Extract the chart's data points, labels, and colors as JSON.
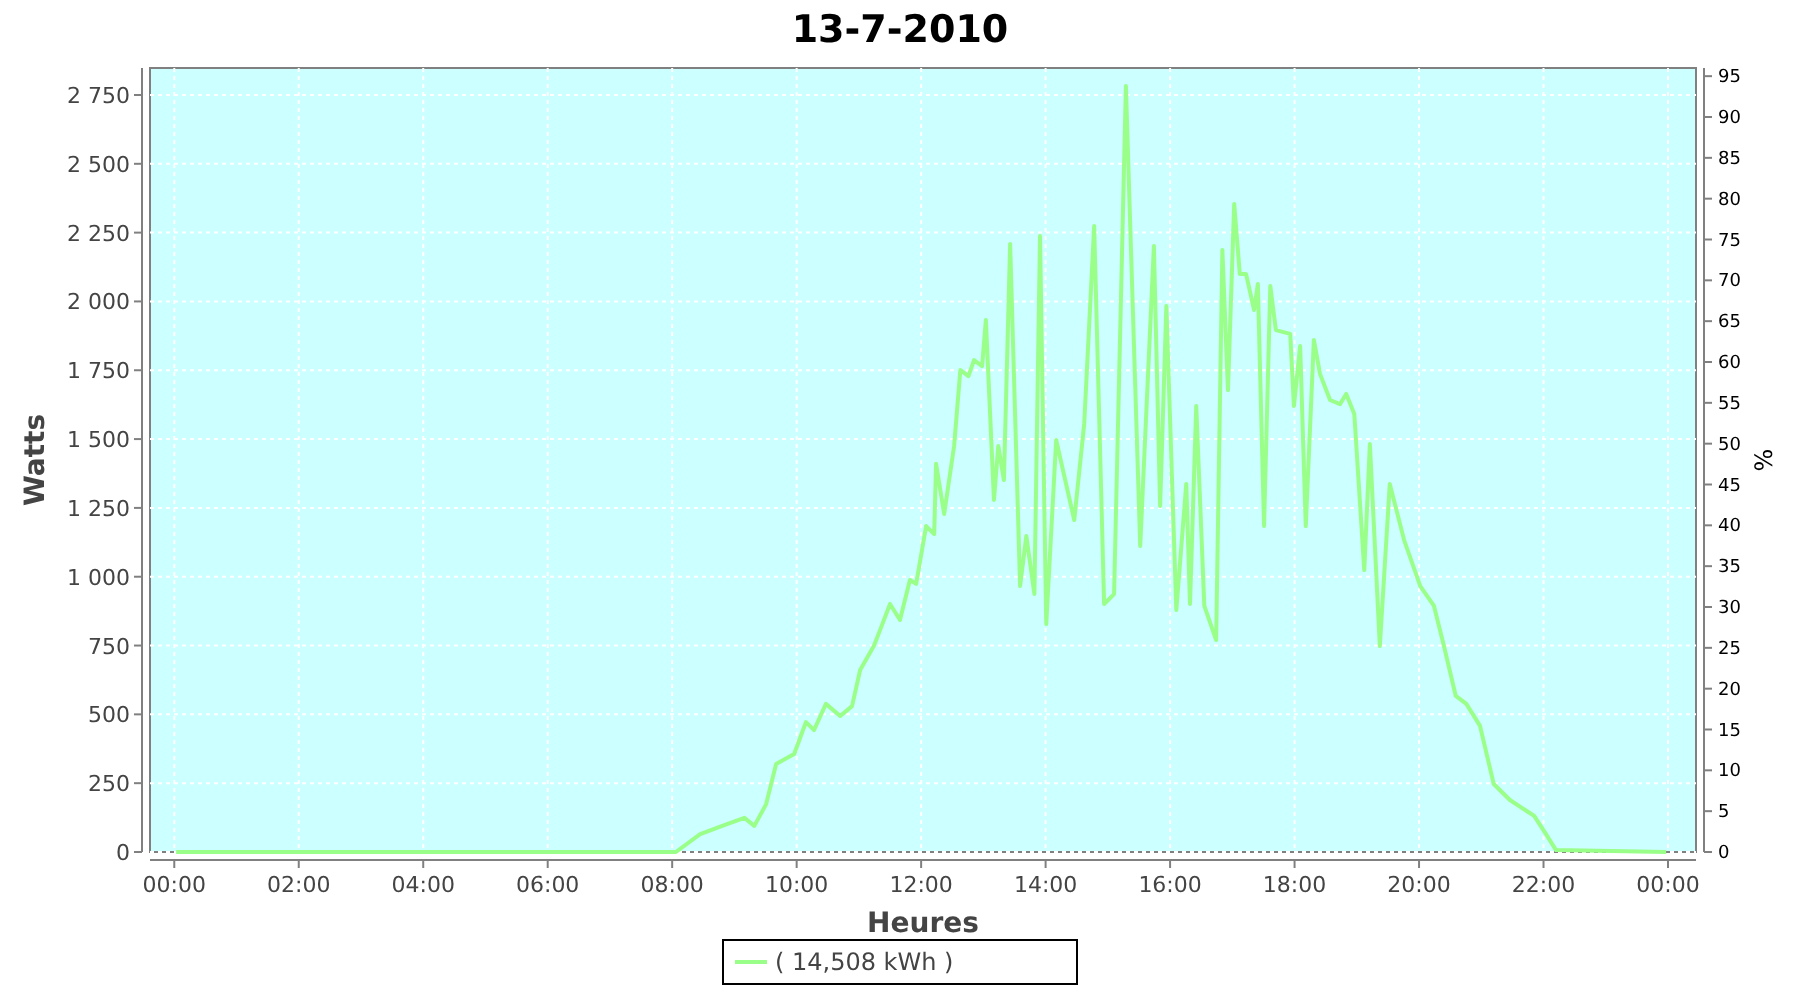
{
  "chart_data": {
    "type": "line",
    "title": "13-7-2010",
    "xlabel": "Heures",
    "ylabel": "Watts",
    "y2label": "%",
    "x": [
      0.03,
      8.06,
      8.45,
      8.87,
      9.16,
      9.32,
      9.51,
      9.67,
      9.96,
      10.15,
      10.28,
      10.47,
      10.7,
      10.89,
      11.02,
      11.24,
      11.34,
      11.5,
      11.66,
      11.82,
      11.92,
      12.08,
      12.21,
      12.24,
      12.37,
      12.53,
      12.63,
      12.76,
      12.85,
      12.98,
      13.04,
      13.17,
      13.24,
      13.33,
      13.43,
      13.59,
      13.69,
      13.82,
      13.91,
      14.01,
      14.17,
      14.3,
      14.46,
      14.62,
      14.78,
      14.94,
      15.1,
      15.29,
      15.52,
      15.74,
      15.84,
      15.94,
      16.1,
      16.26,
      16.32,
      16.42,
      16.55,
      16.74,
      16.84,
      16.93,
      17.03,
      17.12,
      17.22,
      17.35,
      17.41,
      17.51,
      17.61,
      17.7,
      17.93,
      17.99,
      18.09,
      18.18,
      18.31,
      18.41,
      18.57,
      18.73,
      18.83,
      18.96,
      19.12,
      19.21,
      19.37,
      19.53,
      19.76,
      20.02,
      20.24,
      20.4,
      20.59,
      20.76,
      20.98,
      21.2,
      21.46,
      21.85,
      22.04,
      22.2,
      23.97
    ],
    "series": [
      {
        "name": "( 14,508 kWh )",
        "color": "#99ff88",
        "values": [
          0,
          0,
          65,
          100,
          124,
          95,
          174,
          320,
          356,
          472,
          443,
          538,
          494,
          530,
          661,
          748,
          806,
          901,
          843,
          988,
          974,
          1184,
          1155,
          1410,
          1228,
          1475,
          1751,
          1729,
          1787,
          1765,
          1933,
          1279,
          1475,
          1351,
          2209,
          966,
          1148,
          937,
          2238,
          828,
          1497,
          1366,
          1206,
          1555,
          2274,
          901,
          937,
          2783,
          1112,
          2201,
          1257,
          1983,
          879,
          1337,
          901,
          1620,
          894,
          770,
          2187,
          1678,
          2354,
          2100,
          2100,
          1969,
          2063,
          1184,
          2056,
          1896,
          1882,
          1620,
          1838,
          1184,
          1860,
          1736,
          1642,
          1627,
          1664,
          1591,
          1024,
          1482,
          748,
          1337,
          1133,
          966,
          894,
          748,
          567,
          538,
          458,
          247,
          189,
          131,
          65,
          7,
          0
        ]
      }
    ],
    "xlim": [
      -0.39,
      24.45
    ],
    "xticks": [
      {
        "value": 0,
        "label": "00:00"
      },
      {
        "value": 2,
        "label": "02:00"
      },
      {
        "value": 4,
        "label": "04:00"
      },
      {
        "value": 6,
        "label": "06:00"
      },
      {
        "value": 8,
        "label": "08:00"
      },
      {
        "value": 10,
        "label": "10:00"
      },
      {
        "value": 12,
        "label": "12:00"
      },
      {
        "value": 14,
        "label": "14:00"
      },
      {
        "value": 16,
        "label": "16:00"
      },
      {
        "value": 18,
        "label": "18:00"
      },
      {
        "value": 20,
        "label": "20:00"
      },
      {
        "value": 22,
        "label": "22:00"
      },
      {
        "value": 24,
        "label": "00:00"
      }
    ],
    "ylim": [
      0,
      2848
    ],
    "yticks": [
      {
        "value": 0,
        "label": "0"
      },
      {
        "value": 250,
        "label": "250"
      },
      {
        "value": 500,
        "label": "500"
      },
      {
        "value": 750,
        "label": "750"
      },
      {
        "value": 1000,
        "label": "1 000"
      },
      {
        "value": 1250,
        "label": "1 250"
      },
      {
        "value": 1500,
        "label": "1 500"
      },
      {
        "value": 1750,
        "label": "1 750"
      },
      {
        "value": 2000,
        "label": "2 000"
      },
      {
        "value": 2250,
        "label": "2 250"
      },
      {
        "value": 2500,
        "label": "2 500"
      },
      {
        "value": 2750,
        "label": "2 750"
      }
    ],
    "y2lim": [
      0,
      96
    ],
    "y2ticks": [
      0,
      5,
      10,
      15,
      20,
      25,
      30,
      35,
      40,
      45,
      50,
      55,
      60,
      65,
      70,
      75,
      80,
      85,
      90,
      95
    ],
    "grid": true,
    "legend": "bottom",
    "marker": "none",
    "line_style": "solid"
  }
}
